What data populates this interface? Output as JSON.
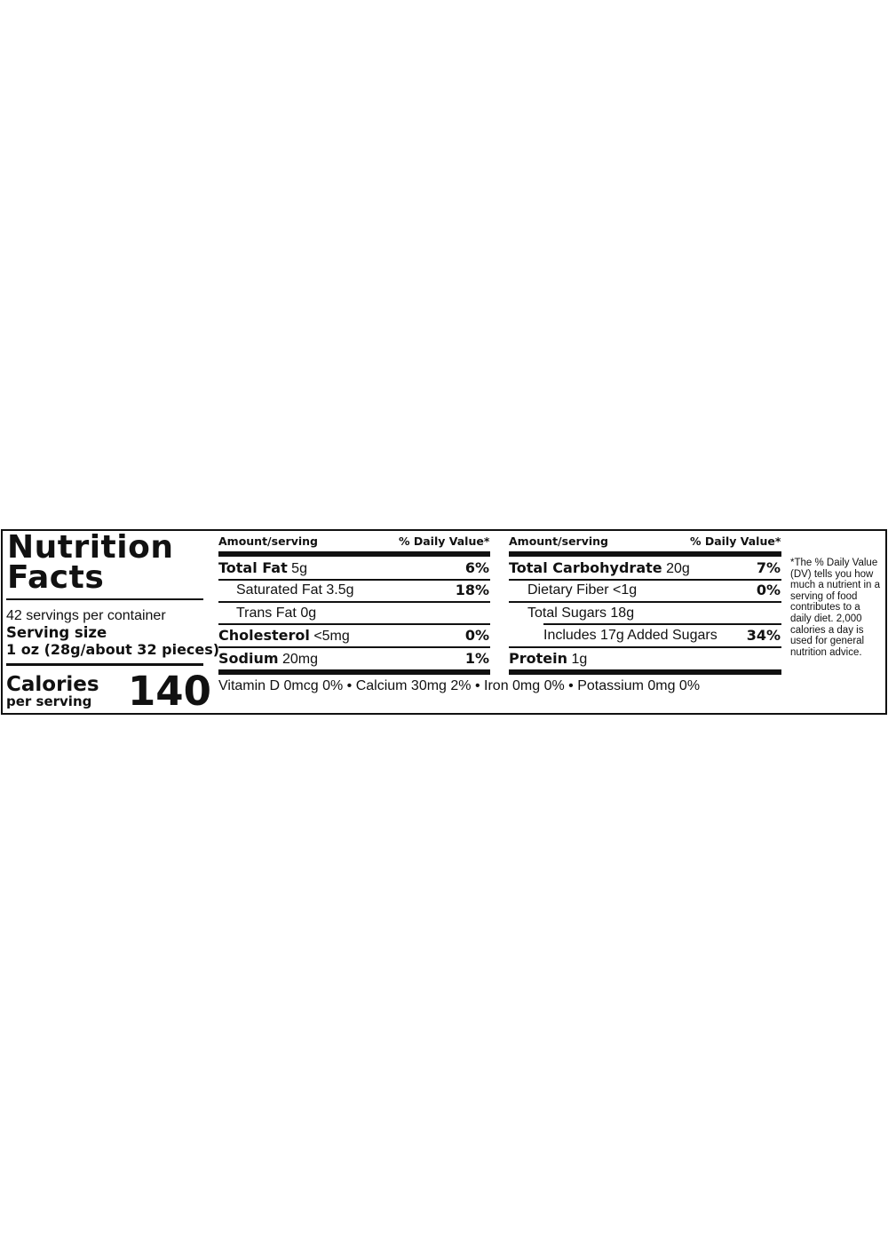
{
  "title_line1": "Nutrition",
  "title_line2": "Facts",
  "servings_per_container": "42 servings per container",
  "serving_size_label": "Serving size",
  "serving_size_value": "1 oz (28g/about 32 pieces)",
  "calories_label": "Calories",
  "calories_sublabel": "per serving",
  "calories_value": "140",
  "left_table": {
    "header_amount": "Amount/serving",
    "header_dv": "% Daily Value*",
    "rows": [
      {
        "name": "Total Fat",
        "amount": "5g",
        "dv": "6%"
      },
      {
        "name": "Saturated Fat",
        "amount": "3.5g",
        "dv": "18%"
      },
      {
        "name": "Trans Fat",
        "amount": "0g",
        "dv": ""
      },
      {
        "name": "Cholesterol",
        "amount": "<5mg",
        "dv": "0%"
      },
      {
        "name": "Sodium",
        "amount": "20mg",
        "dv": "1%"
      }
    ]
  },
  "right_table": {
    "header_amount": "Amount/serving",
    "header_dv": "% Daily Value*",
    "rows": [
      {
        "name": "Total Carbohydrate",
        "amount": "20g",
        "dv": "7%"
      },
      {
        "name": "Dietary Fiber",
        "amount": "<1g",
        "dv": "0%"
      },
      {
        "name": "Total Sugars",
        "amount": "18g",
        "dv": ""
      },
      {
        "name": "Includes 17g Added Sugars",
        "amount": "",
        "dv": "34%"
      },
      {
        "name": "Protein",
        "amount": "1g",
        "dv": ""
      }
    ]
  },
  "vitamins": "Vitamin D 0mcg 0% • Calcium 30mg 2% • Iron 0mg 0% • Potassium 0mg 0%",
  "footnote": "*The % Daily Value (DV) tells you how much a nutrient in a serving of food contributes to a daily diet. 2,000 calories a day is used for general nutrition advice."
}
